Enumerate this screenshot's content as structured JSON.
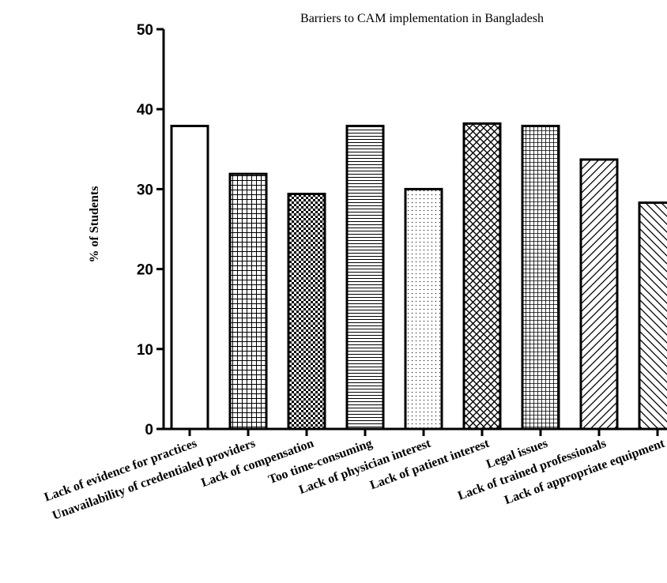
{
  "chart_data": {
    "type": "bar",
    "title": "Barriers to CAM implementation in Bangladesh",
    "xlabel": "",
    "ylabel": "% of Students",
    "ylim": [
      0,
      50
    ],
    "yticks": [
      0,
      10,
      20,
      30,
      40,
      50
    ],
    "grid": false,
    "legend": "none",
    "categories": [
      "Lack of evidence for practices",
      "Unavailability of credentialed providers",
      "Lack of compensation",
      "Too time-consuming",
      "Lack of physician interest",
      "Lack of patient interest",
      "Legal issues",
      "Lack of trained professionals",
      "Lack of appropriate equipment"
    ],
    "values": [
      37.9,
      31.9,
      29.4,
      37.9,
      30.0,
      38.2,
      37.9,
      33.7,
      28.3
    ],
    "patterns": [
      "blank",
      "grid",
      "checker",
      "horizontal-lines",
      "dots",
      "crosshatch",
      "fine-grid",
      "diagonal-up",
      "diagonal-down"
    ],
    "colors": {
      "stroke": "#000000",
      "fill": "#ffffff"
    }
  }
}
